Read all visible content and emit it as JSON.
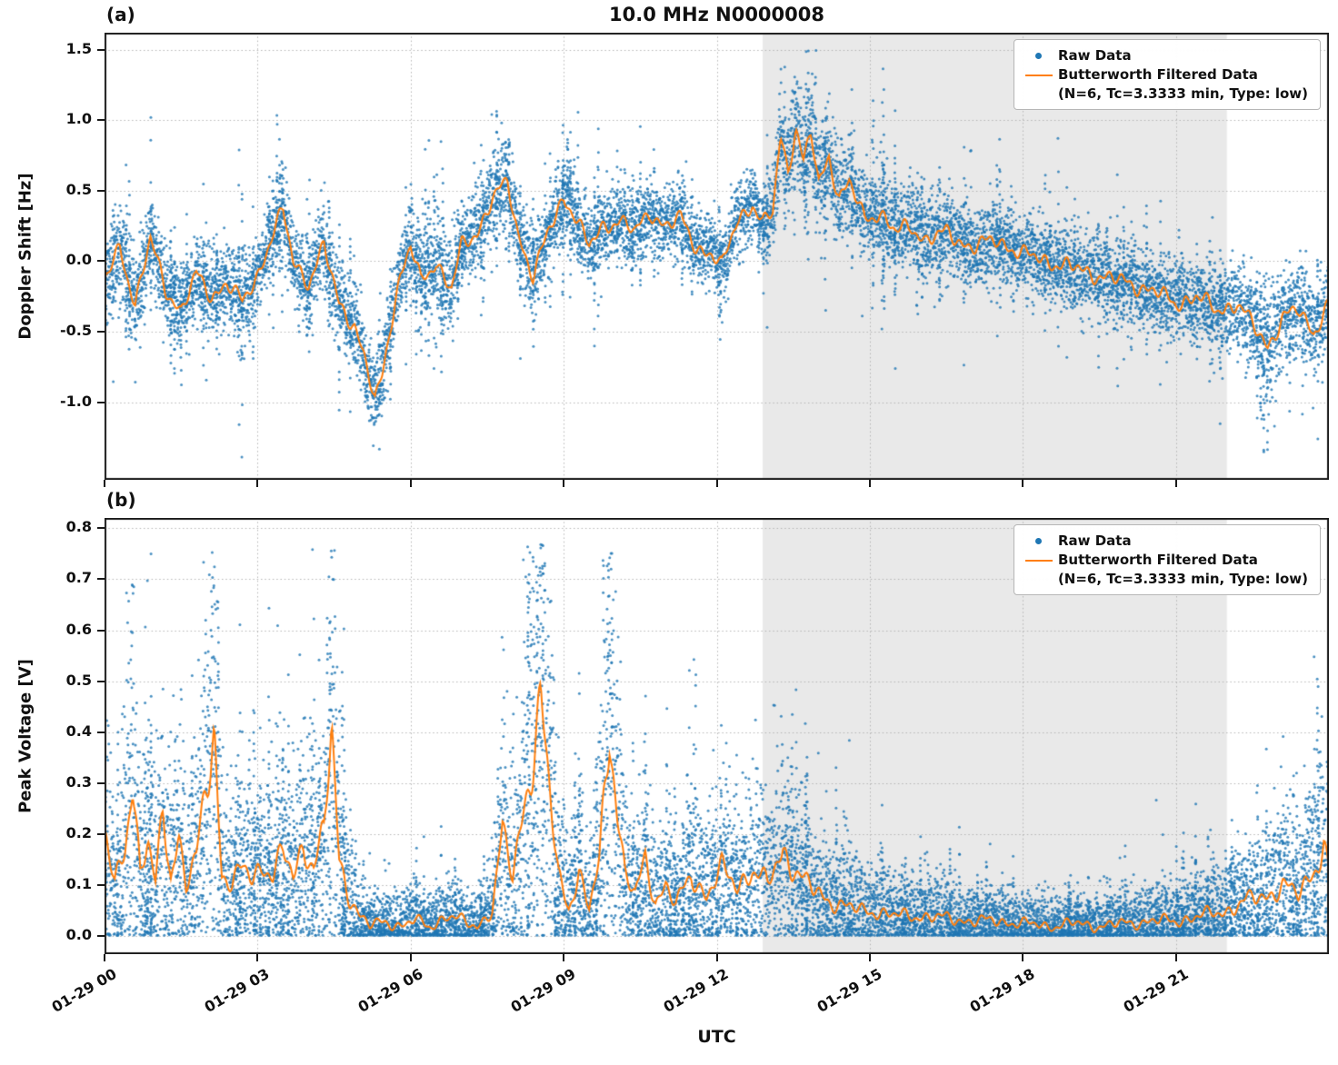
{
  "title": "10.0 MHz N0000008",
  "xlabel": "UTC",
  "panels": {
    "a": {
      "label": "(a)",
      "ylabel": "Doppler Shift [Hz]"
    },
    "b": {
      "label": "(b)",
      "ylabel": "Peak Voltage [V]"
    }
  },
  "legend": {
    "raw": "Raw Data",
    "filtered": "Butterworth Filtered Data",
    "filtered_params": "(N=6, Tc=3.3333 min, Type: low)"
  },
  "colors": {
    "raw": "#1f77b4",
    "filtered": "#ff7f0e",
    "shade": "#e9e9e9",
    "grid": "#b5b5b5",
    "axis": "#1a1a1a"
  },
  "x_ticks": {
    "hours": [
      0,
      3,
      6,
      9,
      12,
      15,
      18,
      21
    ],
    "labels": [
      "01-29 00",
      "01-29 03",
      "01-29 06",
      "01-29 09",
      "01-29 12",
      "01-29 15",
      "01-29 18",
      "01-29 21"
    ]
  },
  "shaded_region_hours": [
    12.9,
    22.0
  ],
  "chart_data": [
    {
      "type": "scatter",
      "panel": "a",
      "series": [
        "Raw Data",
        "Butterworth Filtered Data (N=6, Tc=3.3333 min, Type: low)"
      ],
      "ylabel": "Doppler Shift [Hz]",
      "xlim": [
        0,
        24
      ],
      "ylim": [
        -1.55,
        1.62
      ],
      "yticks": [
        -1.0,
        -0.5,
        0.0,
        0.5,
        1.0,
        1.5
      ],
      "ytick_labels": [
        "-1.0",
        "-0.5",
        "0.0",
        "0.5",
        "1.0",
        "1.5"
      ],
      "x_hours": [
        0,
        0.3,
        0.6,
        0.9,
        1.2,
        1.5,
        1.8,
        2.1,
        2.4,
        2.7,
        3.0,
        3.3,
        3.5,
        3.7,
        4.0,
        4.3,
        4.6,
        4.9,
        5.1,
        5.3,
        5.45,
        5.6,
        5.8,
        6.0,
        6.2,
        6.5,
        6.8,
        7.0,
        7.3,
        7.6,
        7.9,
        8.1,
        8.4,
        8.7,
        9.0,
        9.2,
        9.5,
        9.8,
        10.1,
        10.4,
        10.7,
        11.0,
        11.3,
        11.6,
        11.9,
        12.1,
        12.4,
        12.7,
        12.9,
        13.1,
        13.25,
        13.4,
        13.55,
        13.7,
        13.85,
        14.0,
        14.2,
        14.4,
        14.6,
        14.9,
        15.2,
        15.5,
        15.8,
        16.1,
        16.5,
        17.0,
        17.5,
        18.0,
        18.5,
        19.0,
        19.5,
        20.0,
        20.5,
        21.0,
        21.4,
        21.8,
        22.2,
        22.5,
        22.8,
        23.1,
        23.4,
        23.7,
        24.0
      ],
      "filtered_values": [
        -0.15,
        0.1,
        -0.3,
        0.15,
        -0.2,
        -0.35,
        -0.1,
        -0.25,
        -0.15,
        -0.3,
        -0.1,
        0.2,
        0.35,
        0.0,
        -0.15,
        0.1,
        -0.3,
        -0.45,
        -0.7,
        -1.0,
        -0.8,
        -0.45,
        -0.1,
        0.1,
        -0.15,
        0.0,
        -0.2,
        0.1,
        0.2,
        0.45,
        0.55,
        0.2,
        -0.1,
        0.2,
        0.45,
        0.35,
        0.1,
        0.25,
        0.3,
        0.2,
        0.35,
        0.25,
        0.3,
        0.1,
        0.05,
        -0.05,
        0.3,
        0.4,
        0.25,
        0.35,
        0.9,
        0.65,
        0.95,
        0.7,
        0.9,
        0.55,
        0.75,
        0.45,
        0.55,
        0.3,
        0.35,
        0.2,
        0.25,
        0.15,
        0.2,
        0.1,
        0.15,
        0.05,
        0.0,
        -0.05,
        -0.1,
        -0.15,
        -0.2,
        -0.3,
        -0.25,
        -0.35,
        -0.3,
        -0.45,
        -0.6,
        -0.4,
        -0.35,
        -0.5,
        -0.3
      ],
      "raw_scatter_sigma": [
        0.15,
        0.15,
        0.18,
        0.15,
        0.15,
        0.15,
        0.13,
        0.15,
        0.13,
        0.2,
        0.13,
        0.13,
        0.15,
        0.13,
        0.13,
        0.15,
        0.15,
        0.15,
        0.15,
        0.18,
        0.15,
        0.13,
        0.13,
        0.15,
        0.2,
        0.22,
        0.15,
        0.13,
        0.15,
        0.18,
        0.15,
        0.15,
        0.15,
        0.13,
        0.15,
        0.15,
        0.13,
        0.13,
        0.13,
        0.13,
        0.15,
        0.13,
        0.13,
        0.13,
        0.13,
        0.15,
        0.13,
        0.13,
        0.1,
        0.15,
        0.2,
        0.18,
        0.2,
        0.18,
        0.2,
        0.18,
        0.18,
        0.18,
        0.18,
        0.18,
        0.18,
        0.16,
        0.16,
        0.15,
        0.15,
        0.15,
        0.15,
        0.14,
        0.14,
        0.14,
        0.14,
        0.14,
        0.14,
        0.15,
        0.15,
        0.15,
        0.15,
        0.16,
        0.22,
        0.18,
        0.15,
        0.18,
        0.15
      ]
    },
    {
      "type": "scatter",
      "panel": "b",
      "series": [
        "Raw Data",
        "Butterworth Filtered Data (N=6, Tc=3.3333 min, Type: low)"
      ],
      "ylabel": "Peak Voltage [V]",
      "xlim": [
        0,
        24
      ],
      "ylim": [
        -0.035,
        0.82
      ],
      "yticks": [
        0.0,
        0.1,
        0.2,
        0.3,
        0.4,
        0.5,
        0.6,
        0.7,
        0.8
      ],
      "ytick_labels": [
        "0.0",
        "0.1",
        "0.2",
        "0.3",
        "0.4",
        "0.5",
        "0.6",
        "0.7",
        "0.8"
      ],
      "x_hours": [
        0,
        0.2,
        0.4,
        0.55,
        0.7,
        0.85,
        1.0,
        1.15,
        1.3,
        1.45,
        1.6,
        1.8,
        2.0,
        2.15,
        2.3,
        2.5,
        2.7,
        2.9,
        3.1,
        3.3,
        3.5,
        3.7,
        3.9,
        4.1,
        4.3,
        4.45,
        4.6,
        4.8,
        5.0,
        5.2,
        5.5,
        5.8,
        6.1,
        6.4,
        6.7,
        7.0,
        7.3,
        7.6,
        7.8,
        8.0,
        8.2,
        8.4,
        8.55,
        8.7,
        8.9,
        9.1,
        9.3,
        9.5,
        9.7,
        9.9,
        10.05,
        10.2,
        10.4,
        10.6,
        10.8,
        11.0,
        11.2,
        11.5,
        11.8,
        12.1,
        12.4,
        12.7,
        13.0,
        13.3,
        13.6,
        13.9,
        14.2,
        14.5,
        14.8,
        15.1,
        15.5,
        16.0,
        16.5,
        17.0,
        17.5,
        18.0,
        18.5,
        19.0,
        19.5,
        20.0,
        20.5,
        21.0,
        21.5,
        22.0,
        22.4,
        22.8,
        23.1,
        23.4,
        23.7,
        23.9,
        24.0
      ],
      "filtered_values": [
        0.2,
        0.1,
        0.18,
        0.32,
        0.12,
        0.18,
        0.1,
        0.25,
        0.12,
        0.2,
        0.1,
        0.15,
        0.3,
        0.41,
        0.12,
        0.1,
        0.13,
        0.12,
        0.14,
        0.12,
        0.16,
        0.12,
        0.18,
        0.14,
        0.2,
        0.4,
        0.15,
        0.08,
        0.04,
        0.02,
        0.03,
        0.02,
        0.03,
        0.02,
        0.04,
        0.03,
        0.02,
        0.05,
        0.2,
        0.12,
        0.25,
        0.35,
        0.45,
        0.3,
        0.12,
        0.06,
        0.12,
        0.05,
        0.15,
        0.42,
        0.25,
        0.12,
        0.08,
        0.15,
        0.07,
        0.1,
        0.06,
        0.12,
        0.08,
        0.13,
        0.1,
        0.13,
        0.1,
        0.17,
        0.12,
        0.09,
        0.07,
        0.06,
        0.05,
        0.05,
        0.04,
        0.04,
        0.035,
        0.03,
        0.03,
        0.025,
        0.02,
        0.025,
        0.02,
        0.025,
        0.03,
        0.03,
        0.04,
        0.05,
        0.07,
        0.08,
        0.1,
        0.08,
        0.13,
        0.18,
        0.12
      ],
      "raw_scatter_sigma": [
        0.14,
        0.08,
        0.13,
        0.21,
        0.09,
        0.13,
        0.08,
        0.17,
        0.09,
        0.14,
        0.08,
        0.11,
        0.2,
        0.27,
        0.09,
        0.08,
        0.1,
        0.09,
        0.1,
        0.09,
        0.12,
        0.09,
        0.13,
        0.1,
        0.14,
        0.26,
        0.11,
        0.07,
        0.04,
        0.03,
        0.04,
        0.03,
        0.04,
        0.03,
        0.04,
        0.04,
        0.03,
        0.05,
        0.14,
        0.09,
        0.17,
        0.23,
        0.29,
        0.2,
        0.09,
        0.06,
        0.09,
        0.05,
        0.11,
        0.27,
        0.17,
        0.09,
        0.07,
        0.11,
        0.06,
        0.08,
        0.06,
        0.09,
        0.07,
        0.1,
        0.08,
        0.1,
        0.08,
        0.12,
        0.09,
        0.07,
        0.06,
        0.06,
        0.05,
        0.05,
        0.04,
        0.04,
        0.04,
        0.035,
        0.035,
        0.03,
        0.03,
        0.03,
        0.03,
        0.03,
        0.035,
        0.035,
        0.04,
        0.05,
        0.06,
        0.07,
        0.08,
        0.07,
        0.1,
        0.13,
        0.09
      ]
    }
  ]
}
